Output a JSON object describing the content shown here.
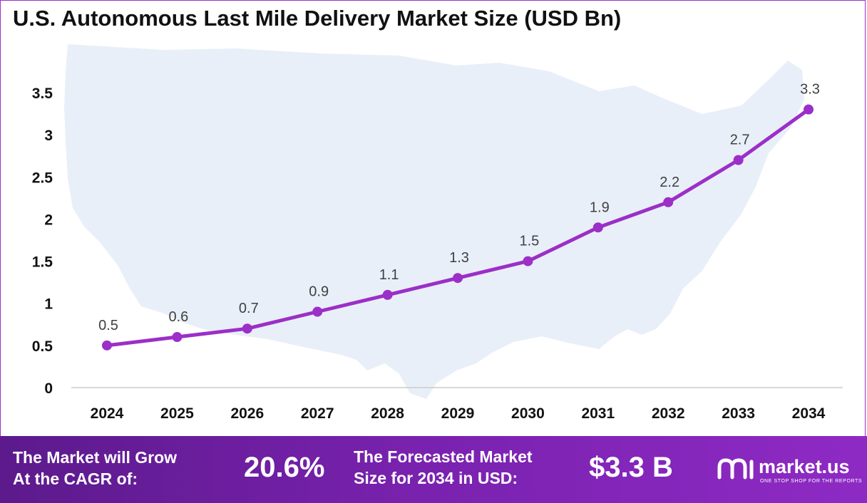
{
  "title": "U.S. Autonomous Last Mile Delivery Market Size (USD Bn)",
  "colors": {
    "line": "#9b2fc7",
    "marker": "#9b2fc7",
    "map_fill": "#e9eff8",
    "axis": "#cccccc",
    "footer_start": "#5c1a8c",
    "footer_end": "#8e2ac4"
  },
  "chart_data": {
    "type": "line",
    "title": "U.S. Autonomous Last Mile Delivery Market Size (USD Bn)",
    "x": [
      "2024",
      "2025",
      "2026",
      "2027",
      "2028",
      "2029",
      "2030",
      "2031",
      "2032",
      "2033",
      "2034"
    ],
    "series": [
      {
        "values": [
          0.5,
          0.6,
          0.7,
          0.9,
          1.1,
          1.3,
          1.5,
          1.9,
          2.2,
          2.7,
          3.3
        ]
      }
    ],
    "data_labels": [
      "0.5",
      "0.6",
      "0.7",
      "0.9",
      "1.1",
      "1.3",
      "1.5",
      "1.9",
      "2.2",
      "2.7",
      "3.3"
    ],
    "y_ticks": [
      0,
      0.5,
      1,
      1.5,
      2,
      2.5,
      3,
      3.5
    ],
    "y_tick_labels": [
      "0",
      "0.5",
      "1",
      "1.5",
      "2",
      "2.5",
      "3",
      "3.5"
    ],
    "ylim": [
      0,
      3.5
    ],
    "grid": false,
    "legend": "none",
    "background_image": "usa-map-silhouette"
  },
  "footer": {
    "cagr_label": "The Market will Grow\nAt the CAGR of:",
    "cagr_value": "20.6%",
    "forecast_label": "The Forecasted Market\nSize for 2034 in USD:",
    "forecast_value": "$3.3 B",
    "brand_name": "market.us",
    "brand_tagline": "ONE STOP SHOP FOR THE REPORTS",
    "brand_icon": "market-us-logo-icon"
  }
}
